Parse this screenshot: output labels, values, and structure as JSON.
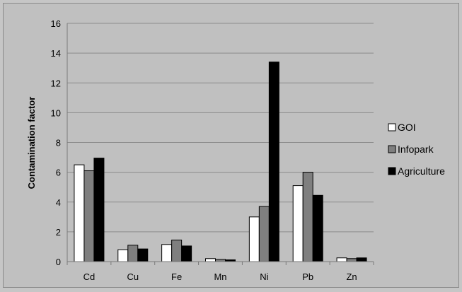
{
  "chart_data": {
    "type": "bar",
    "title": "",
    "xlabel": "",
    "ylabel": "Contamination factor",
    "ylim": [
      0,
      16
    ],
    "yticks": [
      0,
      2,
      4,
      6,
      8,
      10,
      12,
      14,
      16
    ],
    "grid": true,
    "legend_position": "right",
    "categories": [
      "Cd",
      "Cu",
      "Fe",
      "Mn",
      "Ni",
      "Pb",
      "Zn"
    ],
    "series": [
      {
        "name": "GOI",
        "color": "#ffffff",
        "values": [
          6.5,
          0.8,
          1.15,
          0.2,
          3.0,
          5.1,
          0.25
        ]
      },
      {
        "name": "Infopark",
        "color": "#7f7f7f",
        "values": [
          6.1,
          1.1,
          1.45,
          0.15,
          3.7,
          6.0,
          0.2
        ]
      },
      {
        "name": "Agriculture",
        "color": "#000000",
        "values": [
          6.95,
          0.85,
          1.05,
          0.12,
          13.4,
          4.45,
          0.25
        ]
      }
    ]
  }
}
